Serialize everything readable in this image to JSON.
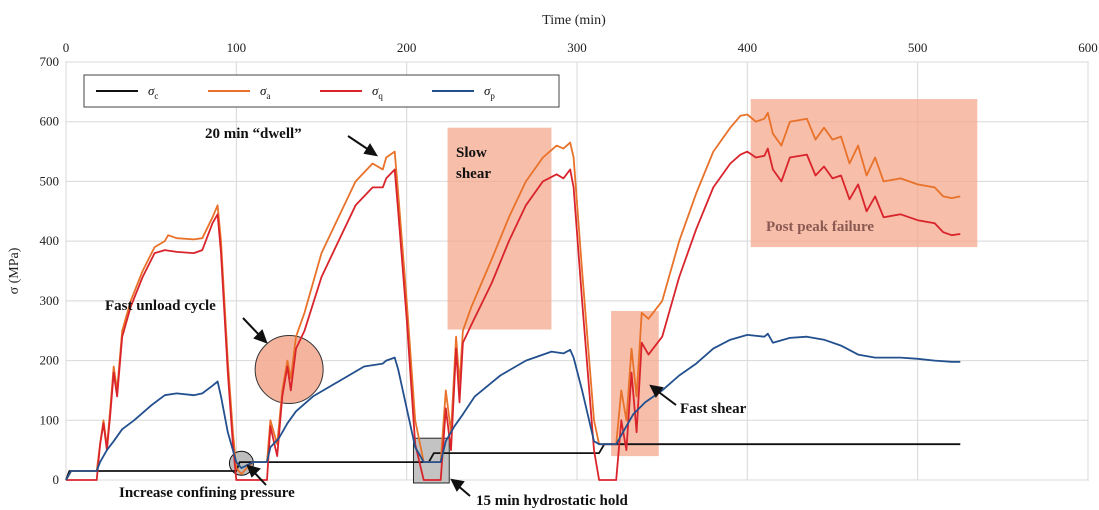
{
  "chart_data": {
    "type": "line",
    "xlabel": "Time (min)",
    "ylabel": "σ (MPa)",
    "xlim": [
      0,
      600
    ],
    "ylim": [
      0,
      700
    ],
    "xticks": [
      "0",
      "100",
      "200",
      "300",
      "400",
      "500",
      "600"
    ],
    "yticks": [
      "0",
      "100",
      "200",
      "300",
      "400",
      "500",
      "600",
      "700"
    ],
    "x_axis_position": "top",
    "grid": true,
    "legend_position": "top-left",
    "series": [
      {
        "name": "σc",
        "color": "#111111",
        "points": [
          [
            0,
            0
          ],
          [
            2,
            15
          ],
          [
            18,
            15
          ],
          [
            95,
            15
          ],
          [
            100,
            15
          ],
          [
            102,
            30
          ],
          [
            200,
            30
          ],
          [
            213,
            30
          ],
          [
            216,
            45
          ],
          [
            313,
            45
          ],
          [
            316,
            60
          ],
          [
            525,
            60
          ]
        ]
      },
      {
        "name": "σa",
        "color": "#e8722a",
        "points": [
          [
            0,
            0
          ],
          [
            3,
            15
          ],
          [
            18,
            15
          ],
          [
            20,
            60
          ],
          [
            22,
            100
          ],
          [
            24,
            55
          ],
          [
            26,
            120
          ],
          [
            28,
            190
          ],
          [
            30,
            150
          ],
          [
            33,
            250
          ],
          [
            38,
            300
          ],
          [
            45,
            350
          ],
          [
            52,
            390
          ],
          [
            58,
            400
          ],
          [
            60,
            410
          ],
          [
            65,
            405
          ],
          [
            75,
            403
          ],
          [
            80,
            405
          ],
          [
            86,
            440
          ],
          [
            89,
            460
          ],
          [
            91,
            400
          ],
          [
            95,
            200
          ],
          [
            98,
            80
          ],
          [
            100,
            20
          ],
          [
            103,
            10
          ],
          [
            106,
            20
          ],
          [
            110,
            30
          ],
          [
            114,
            30
          ],
          [
            118,
            30
          ],
          [
            120,
            100
          ],
          [
            124,
            60
          ],
          [
            127,
            150
          ],
          [
            130,
            200
          ],
          [
            132,
            170
          ],
          [
            135,
            240
          ],
          [
            140,
            280
          ],
          [
            150,
            380
          ],
          [
            160,
            440
          ],
          [
            170,
            500
          ],
          [
            180,
            530
          ],
          [
            186,
            520
          ],
          [
            188,
            540
          ],
          [
            193,
            550
          ],
          [
            195,
            480
          ],
          [
            200,
            300
          ],
          [
            205,
            100
          ],
          [
            210,
            30
          ],
          [
            215,
            30
          ],
          [
            220,
            30
          ],
          [
            223,
            150
          ],
          [
            226,
            80
          ],
          [
            229,
            240
          ],
          [
            231,
            160
          ],
          [
            233,
            250
          ],
          [
            238,
            290
          ],
          [
            250,
            370
          ],
          [
            260,
            440
          ],
          [
            270,
            500
          ],
          [
            280,
            540
          ],
          [
            288,
            560
          ],
          [
            292,
            555
          ],
          [
            296,
            565
          ],
          [
            298,
            540
          ],
          [
            303,
            350
          ],
          [
            310,
            100
          ],
          [
            313,
            60
          ],
          [
            318,
            60
          ],
          [
            323,
            60
          ],
          [
            326,
            150
          ],
          [
            329,
            100
          ],
          [
            332,
            220
          ],
          [
            335,
            140
          ],
          [
            338,
            280
          ],
          [
            342,
            270
          ],
          [
            350,
            300
          ],
          [
            360,
            400
          ],
          [
            370,
            480
          ],
          [
            380,
            550
          ],
          [
            390,
            590
          ],
          [
            396,
            610
          ],
          [
            400,
            612
          ],
          [
            405,
            600
          ],
          [
            410,
            605
          ],
          [
            412,
            615
          ],
          [
            415,
            580
          ],
          [
            420,
            560
          ],
          [
            425,
            600
          ],
          [
            435,
            605
          ],
          [
            440,
            570
          ],
          [
            445,
            590
          ],
          [
            450,
            570
          ],
          [
            455,
            575
          ],
          [
            460,
            530
          ],
          [
            465,
            560
          ],
          [
            470,
            510
          ],
          [
            475,
            540
          ],
          [
            480,
            500
          ],
          [
            490,
            505
          ],
          [
            500,
            495
          ],
          [
            510,
            490
          ],
          [
            515,
            475
          ],
          [
            520,
            472
          ],
          [
            525,
            475
          ]
        ]
      },
      {
        "name": "σq",
        "color": "#d9242c",
        "points": [
          [
            0,
            0
          ],
          [
            3,
            0
          ],
          [
            18,
            0
          ],
          [
            20,
            60
          ],
          [
            22,
            95
          ],
          [
            24,
            50
          ],
          [
            26,
            110
          ],
          [
            28,
            180
          ],
          [
            30,
            140
          ],
          [
            33,
            240
          ],
          [
            38,
            290
          ],
          [
            45,
            340
          ],
          [
            52,
            380
          ],
          [
            58,
            385
          ],
          [
            65,
            382
          ],
          [
            75,
            380
          ],
          [
            80,
            385
          ],
          [
            86,
            430
          ],
          [
            89,
            445
          ],
          [
            91,
            380
          ],
          [
            95,
            180
          ],
          [
            98,
            60
          ],
          [
            100,
            0
          ],
          [
            103,
            0
          ],
          [
            114,
            0
          ],
          [
            118,
            0
          ],
          [
            120,
            90
          ],
          [
            124,
            40
          ],
          [
            127,
            140
          ],
          [
            130,
            190
          ],
          [
            132,
            150
          ],
          [
            135,
            220
          ],
          [
            140,
            250
          ],
          [
            150,
            340
          ],
          [
            160,
            400
          ],
          [
            170,
            460
          ],
          [
            180,
            490
          ],
          [
            186,
            490
          ],
          [
            188,
            505
          ],
          [
            193,
            520
          ],
          [
            195,
            450
          ],
          [
            200,
            270
          ],
          [
            205,
            60
          ],
          [
            210,
            0
          ],
          [
            220,
            0
          ],
          [
            223,
            120
          ],
          [
            226,
            50
          ],
          [
            229,
            220
          ],
          [
            231,
            130
          ],
          [
            233,
            230
          ],
          [
            238,
            260
          ],
          [
            250,
            330
          ],
          [
            260,
            400
          ],
          [
            270,
            460
          ],
          [
            280,
            500
          ],
          [
            288,
            512
          ],
          [
            292,
            505
          ],
          [
            296,
            520
          ],
          [
            298,
            490
          ],
          [
            303,
            300
          ],
          [
            310,
            50
          ],
          [
            313,
            0
          ],
          [
            323,
            0
          ],
          [
            326,
            100
          ],
          [
            329,
            50
          ],
          [
            332,
            180
          ],
          [
            335,
            80
          ],
          [
            338,
            230
          ],
          [
            342,
            210
          ],
          [
            350,
            240
          ],
          [
            360,
            340
          ],
          [
            370,
            420
          ],
          [
            380,
            490
          ],
          [
            390,
            530
          ],
          [
            396,
            545
          ],
          [
            400,
            550
          ],
          [
            405,
            540
          ],
          [
            410,
            543
          ],
          [
            412,
            555
          ],
          [
            415,
            520
          ],
          [
            420,
            500
          ],
          [
            425,
            540
          ],
          [
            435,
            545
          ],
          [
            440,
            510
          ],
          [
            445,
            525
          ],
          [
            450,
            505
          ],
          [
            455,
            510
          ],
          [
            460,
            470
          ],
          [
            465,
            495
          ],
          [
            470,
            450
          ],
          [
            475,
            475
          ],
          [
            480,
            440
          ],
          [
            490,
            445
          ],
          [
            500,
            435
          ],
          [
            510,
            430
          ],
          [
            515,
            415
          ],
          [
            520,
            410
          ],
          [
            525,
            412
          ]
        ]
      },
      {
        "name": "σp",
        "color": "#23508e",
        "points": [
          [
            0,
            0
          ],
          [
            3,
            15
          ],
          [
            18,
            15
          ],
          [
            20,
            30
          ],
          [
            24,
            50
          ],
          [
            28,
            65
          ],
          [
            33,
            85
          ],
          [
            40,
            100
          ],
          [
            50,
            125
          ],
          [
            58,
            142
          ],
          [
            65,
            145
          ],
          [
            75,
            142
          ],
          [
            80,
            145
          ],
          [
            86,
            158
          ],
          [
            89,
            165
          ],
          [
            91,
            140
          ],
          [
            95,
            80
          ],
          [
            100,
            30
          ],
          [
            103,
            20
          ],
          [
            110,
            30
          ],
          [
            118,
            30
          ],
          [
            120,
            55
          ],
          [
            125,
            70
          ],
          [
            130,
            95
          ],
          [
            135,
            115
          ],
          [
            145,
            140
          ],
          [
            160,
            165
          ],
          [
            175,
            190
          ],
          [
            186,
            195
          ],
          [
            188,
            200
          ],
          [
            193,
            205
          ],
          [
            195,
            185
          ],
          [
            200,
            120
          ],
          [
            205,
            55
          ],
          [
            210,
            30
          ],
          [
            220,
            30
          ],
          [
            223,
            65
          ],
          [
            228,
            90
          ],
          [
            233,
            110
          ],
          [
            240,
            140
          ],
          [
            255,
            175
          ],
          [
            270,
            200
          ],
          [
            285,
            215
          ],
          [
            292,
            212
          ],
          [
            296,
            218
          ],
          [
            298,
            205
          ],
          [
            303,
            150
          ],
          [
            310,
            65
          ],
          [
            313,
            60
          ],
          [
            323,
            60
          ],
          [
            328,
            85
          ],
          [
            333,
            110
          ],
          [
            340,
            130
          ],
          [
            350,
            150
          ],
          [
            360,
            175
          ],
          [
            370,
            195
          ],
          [
            380,
            220
          ],
          [
            390,
            235
          ],
          [
            400,
            243
          ],
          [
            410,
            240
          ],
          [
            412,
            245
          ],
          [
            415,
            230
          ],
          [
            425,
            238
          ],
          [
            435,
            240
          ],
          [
            445,
            235
          ],
          [
            455,
            225
          ],
          [
            465,
            210
          ],
          [
            475,
            205
          ],
          [
            490,
            205
          ],
          [
            500,
            203
          ],
          [
            510,
            200
          ],
          [
            520,
            198
          ],
          [
            525,
            198
          ]
        ]
      }
    ],
    "annotations": [
      {
        "text": "20 min “dwell”"
      },
      {
        "text": "Slow"
      },
      {
        "text": "shear"
      },
      {
        "text": "Fast unload cycle"
      },
      {
        "text": "Post peak failure"
      },
      {
        "text": "Fast shear"
      },
      {
        "text": "Increase confining pressure"
      },
      {
        "text": "15 min hydrostatic hold"
      }
    ],
    "highlight_color": "#f4a88e"
  },
  "legend": {
    "items": [
      {
        "symbol": "σ",
        "sub": "c",
        "color": "#111111"
      },
      {
        "symbol": "σ",
        "sub": "a",
        "color": "#e8722a"
      },
      {
        "symbol": "σ",
        "sub": "q",
        "color": "#d9242c"
      },
      {
        "symbol": "σ",
        "sub": "p",
        "color": "#23508e"
      }
    ]
  }
}
